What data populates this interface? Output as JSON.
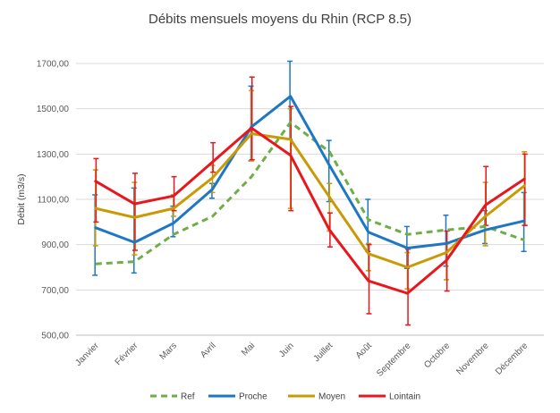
{
  "chart_data": {
    "type": "line",
    "title": "Débits mensuels moyens du Rhin (RCP 8.5)",
    "xlabel": "",
    "ylabel": "Débit (m3/s)",
    "ylim": [
      500,
      1700
    ],
    "yticks": [
      500,
      700,
      900,
      1100,
      1300,
      1500,
      1700
    ],
    "ytick_labels": [
      "500,00",
      "700,00",
      "900,00",
      "1100,00",
      "1300,00",
      "1500,00",
      "1700,00"
    ],
    "grid": true,
    "legend_position": "bottom",
    "categories": [
      "Janvier",
      "Février",
      "Mars",
      "Avril",
      "Mai",
      "Juin",
      "Juillet",
      "Août",
      "Septembre",
      "Octobre",
      "Novembre",
      "Décembre"
    ],
    "series": [
      {
        "name": "Ref",
        "color": "#70AD47",
        "dash": "dashed",
        "values": [
          815,
          825,
          945,
          1025,
          1200,
          1440,
          1310,
          1010,
          945,
          965,
          980,
          920
        ],
        "err_low": null,
        "err_high": null
      },
      {
        "name": "Proche",
        "color": "#1F77C4",
        "dash": "solid",
        "values": [
          975,
          910,
          995,
          1145,
          1420,
          1555,
          1250,
          955,
          885,
          905,
          965,
          1005
        ],
        "err_low": [
          765,
          775,
          935,
          1105,
          1270,
          1365,
          1090,
          870,
          795,
          805,
          905,
          870
        ],
        "err_high": [
          1120,
          1150,
          1070,
          1170,
          1600,
          1710,
          1360,
          1100,
          980,
          1030,
          1050,
          1130
        ]
      },
      {
        "name": "Moyen",
        "color": "#C99A06",
        "dash": "solid",
        "values": [
          1060,
          1020,
          1060,
          1195,
          1390,
          1365,
          1110,
          860,
          800,
          865,
          1025,
          1160
        ],
        "err_low": [
          895,
          855,
          1025,
          1130,
          1270,
          1060,
          960,
          785,
          705,
          745,
          895,
          985
        ],
        "err_high": [
          1230,
          1175,
          1120,
          1250,
          1580,
          1500,
          1170,
          905,
          865,
          905,
          1175,
          1310
        ]
      },
      {
        "name": "Lointain",
        "color": "#E8161D",
        "dash": "solid",
        "values": [
          1180,
          1080,
          1115,
          1265,
          1415,
          1295,
          965,
          740,
          685,
          830,
          1075,
          1190
        ],
        "err_low": [
          1000,
          875,
          1050,
          1220,
          1275,
          1050,
          890,
          595,
          545,
          695,
          985,
          985
        ],
        "err_high": [
          1280,
          1215,
          1200,
          1350,
          1640,
          1510,
          1040,
          900,
          880,
          960,
          1245,
          1300
        ]
      }
    ]
  }
}
